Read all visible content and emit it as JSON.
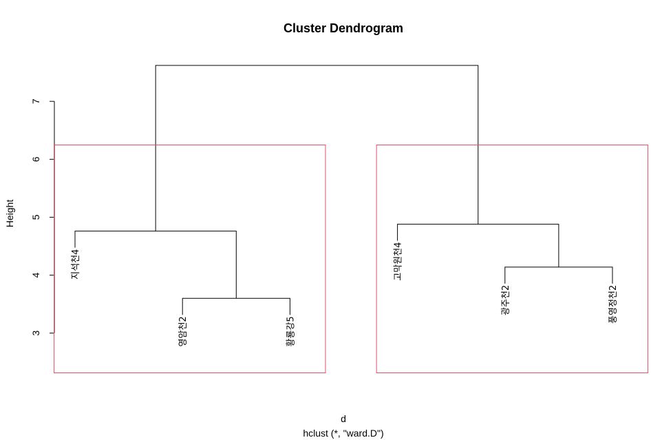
{
  "chart_data": {
    "type": "dendrogram",
    "title": "Cluster Dendrogram",
    "xlabel": "d",
    "sub": "hclust (*, \"ward.D\")",
    "ylabel": "Height",
    "yticks": [
      3,
      4,
      5,
      6,
      7
    ],
    "ylim": [
      2.32,
      7.62
    ],
    "leaves": [
      "지석천4",
      "영암천2",
      "황룡강5",
      "고막원천4",
      "광주천2",
      "풍영정천2"
    ],
    "merges": [
      {
        "a": 1,
        "b": 2,
        "height": 3.6
      },
      {
        "a": 0,
        "b": "m0",
        "height": 4.76
      },
      {
        "a": 4,
        "b": 5,
        "height": 4.14
      },
      {
        "a": 3,
        "b": "m2",
        "height": 4.88
      },
      {
        "a": "m1",
        "b": "m3",
        "height": 7.62
      }
    ],
    "leaf_heights": [
      4.76,
      3.6,
      3.6,
      4.88,
      4.14,
      4.14
    ],
    "clusters": [
      {
        "leaves": [
          0,
          1,
          2
        ]
      },
      {
        "leaves": [
          3,
          4,
          5
        ]
      }
    ],
    "rect_color": "#DF536B",
    "line_color": "#000000"
  }
}
